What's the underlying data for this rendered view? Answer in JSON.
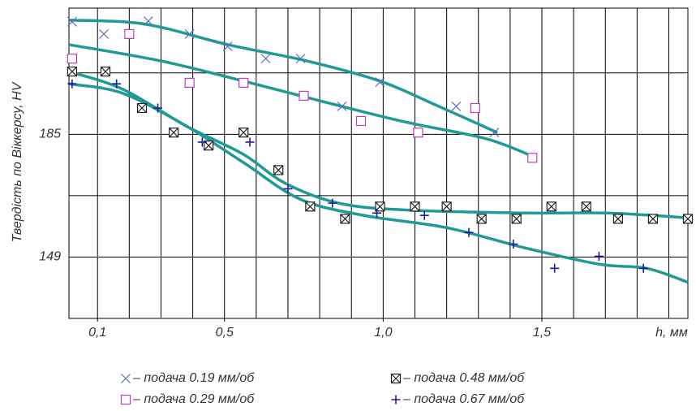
{
  "chart_data": {
    "type": "scatter",
    "y_label": "Твердість по Віккерсу, HV",
    "x_label": "h, мм",
    "xlim": [
      0.01,
      1.96
    ],
    "ylim": [
      131,
      222
    ],
    "xticks": [
      {
        "value": 0.1,
        "label": "0,1"
      },
      {
        "value": 0.5,
        "label": "0,5"
      },
      {
        "value": 1.0,
        "label": "1,0"
      },
      {
        "value": 1.5,
        "label": "1,5"
      }
    ],
    "yticks": [
      149,
      185
    ],
    "xgrid": [
      0.1,
      0.2,
      0.3,
      0.4,
      0.5,
      0.6,
      0.7,
      0.8,
      0.9,
      1.0,
      1.1,
      1.2,
      1.3,
      1.4,
      1.5,
      1.6,
      1.7,
      1.8,
      1.9
    ],
    "ygrid": [
      149,
      167,
      185,
      203
    ],
    "fit_color": "#1f9a95",
    "series": [
      {
        "name": "– подача 0.19 мм/об",
        "marker": "x",
        "color": "#5a6fc0",
        "x": [
          0.02,
          0.12,
          0.26,
          0.39,
          0.51,
          0.63,
          0.74,
          0.87,
          0.99,
          1.23,
          1.35
        ],
        "values": [
          218.0,
          214.4,
          218.2,
          214.4,
          210.8,
          207.2,
          207.2,
          193.2,
          200.3,
          193.2,
          185.5
        ],
        "fit": {
          "x": [
            0.01,
            0.25,
            0.51,
            0.76,
            0.99,
            1.17,
            1.36
          ],
          "y": [
            218.5,
            217.3,
            211.3,
            206.5,
            200.6,
            193.4,
            185.5
          ]
        }
      },
      {
        "name": "– подача 0.29 мм/об",
        "marker": "square",
        "color": "#c03cc0",
        "x": [
          0.02,
          0.2,
          0.39,
          0.56,
          0.75,
          0.93,
          1.11,
          1.29,
          1.47
        ],
        "values": [
          207.2,
          214.4,
          200.1,
          200.1,
          196.3,
          188.9,
          185.5,
          192.7,
          178.1
        ],
        "fit": {
          "x": [
            0.01,
            0.3,
            0.56,
            0.81,
            1.07,
            1.32,
            1.47
          ],
          "y": [
            211.3,
            206.5,
            200.6,
            194.6,
            188.6,
            183.8,
            178.6
          ]
        }
      },
      {
        "name": "– подача 0.48 мм/об",
        "marker": "boxx",
        "color": "#222222",
        "x": [
          0.02,
          0.125,
          0.24,
          0.34,
          0.45,
          0.56,
          0.67,
          0.77,
          0.88,
          0.99,
          1.1,
          1.2,
          1.31,
          1.42,
          1.53,
          1.64,
          1.74,
          1.85,
          1.96
        ],
        "values": [
          203.4,
          203.4,
          192.7,
          185.5,
          181.7,
          185.5,
          174.5,
          163.8,
          160.2,
          163.8,
          163.8,
          163.8,
          160.2,
          160.2,
          163.8,
          163.8,
          160.2,
          160.2,
          160.2
        ],
        "fit": {
          "x": [
            0.01,
            0.18,
            0.38,
            0.56,
            0.69,
            0.86,
            1.07,
            1.45,
            1.71,
            1.96
          ],
          "y": [
            203.4,
            198.2,
            187.4,
            179.1,
            170.7,
            164.8,
            162.8,
            161.9,
            161.9,
            160.5
          ]
        }
      },
      {
        "name": "– подача 0.67 мм/об",
        "marker": "plus",
        "color": "#1a1aa0",
        "x": [
          0.02,
          0.16,
          0.29,
          0.43,
          0.58,
          0.7,
          0.84,
          0.98,
          1.13,
          1.27,
          1.41,
          1.54,
          1.68,
          1.82
        ],
        "values": [
          199.8,
          199.8,
          192.7,
          182.7,
          182.7,
          169.0,
          164.8,
          161.9,
          161.2,
          156.2,
          152.8,
          145.7,
          149.2,
          145.7
        ],
        "fit": {
          "x": [
            0.01,
            0.18,
            0.38,
            0.56,
            0.74,
            0.94,
            1.2,
            1.45,
            1.68,
            1.83,
            1.96
          ],
          "y": [
            199.8,
            197.0,
            187.4,
            176.7,
            165.9,
            161.2,
            157.6,
            151.6,
            146.9,
            145.7,
            141.6
          ]
        }
      }
    ]
  }
}
